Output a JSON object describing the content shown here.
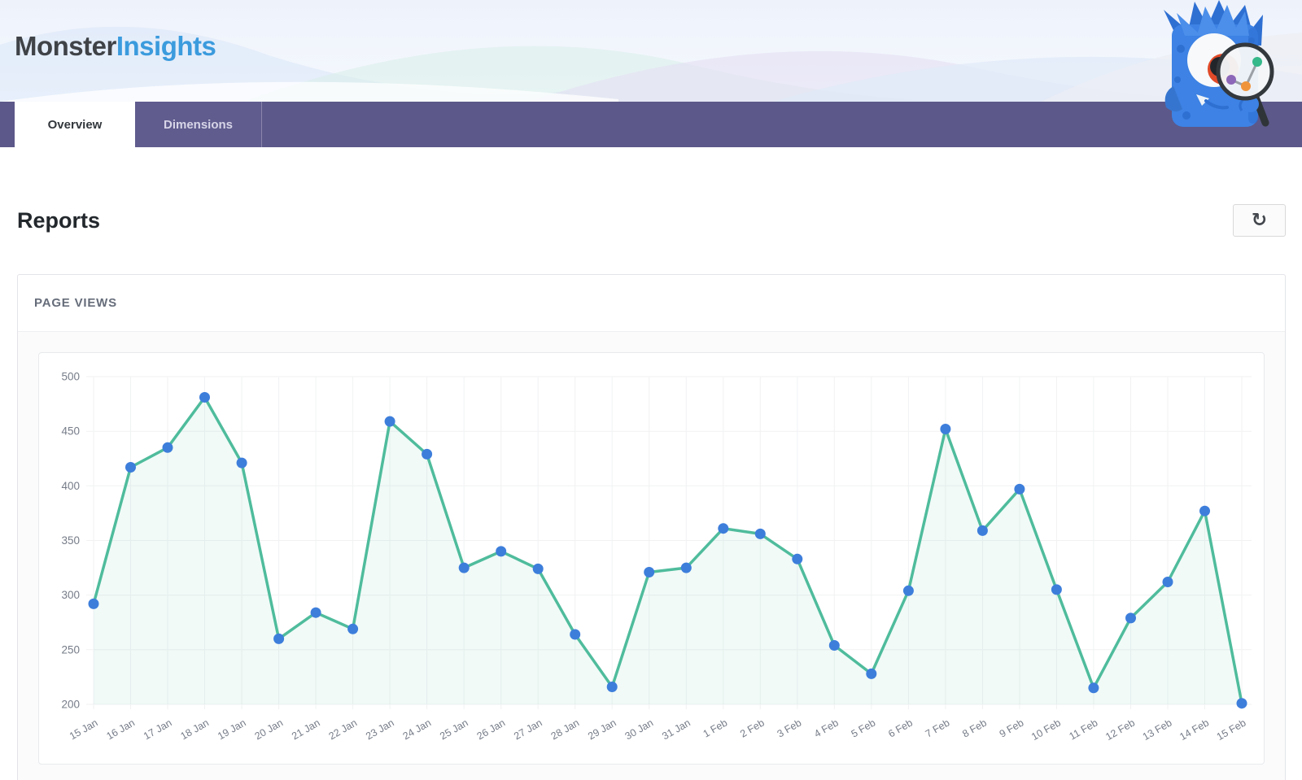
{
  "header": {
    "logo_part1": "Monster",
    "logo_part2": "Insights"
  },
  "nav": {
    "tabs": [
      {
        "label": "Overview",
        "active": true
      },
      {
        "label": "Dimensions",
        "active": false
      }
    ]
  },
  "page": {
    "title": "Reports"
  },
  "toolbar": {
    "refresh_glyph": "↻",
    "refresh_icon_name": "refresh-circular-arrows"
  },
  "card": {
    "title": "PAGE VIEWS"
  },
  "icons": {
    "mascot": "monsterinsights-monster-with-magnifying-glass"
  },
  "colors": {
    "accent_purple": "#5c5889",
    "logo_blue": "#3b9bdd",
    "line_teal": "#4fbc9c",
    "point_blue": "#3d7edb"
  },
  "chart_data": {
    "type": "line",
    "title": "Page views",
    "x": [
      "15 Jan",
      "16 Jan",
      "17 Jan",
      "18 Jan",
      "19 Jan",
      "20 Jan",
      "21 Jan",
      "22 Jan",
      "23 Jan",
      "24 Jan",
      "25 Jan",
      "26 Jan",
      "27 Jan",
      "28 Jan",
      "29 Jan",
      "30 Jan",
      "31 Jan",
      "1 Feb",
      "2 Feb",
      "3 Feb",
      "4 Feb",
      "5 Feb",
      "6 Feb",
      "7 Feb",
      "8 Feb",
      "9 Feb",
      "10 Feb",
      "11 Feb",
      "12 Feb",
      "13 Feb",
      "14 Feb",
      "15 Feb"
    ],
    "values": [
      292,
      417,
      435,
      481,
      421,
      260,
      284,
      269,
      459,
      429,
      325,
      340,
      324,
      264,
      216,
      321,
      325,
      361,
      356,
      333,
      254,
      228,
      304,
      452,
      359,
      397,
      305,
      215,
      279,
      312,
      377,
      201
    ],
    "xlabel": "",
    "ylabel": "",
    "ylim": [
      200,
      500
    ],
    "yticks": [
      500,
      450,
      400,
      350,
      300,
      250,
      200
    ],
    "grid": true,
    "legend": "none",
    "style": {
      "line_color": "#4fbc9c",
      "point_color": "#3d7edb",
      "area_color": "rgba(79,188,156,0.08)",
      "grid_color": "#f1f2f3",
      "tick_color": "#767c88",
      "x_label_rotation": -30
    }
  }
}
